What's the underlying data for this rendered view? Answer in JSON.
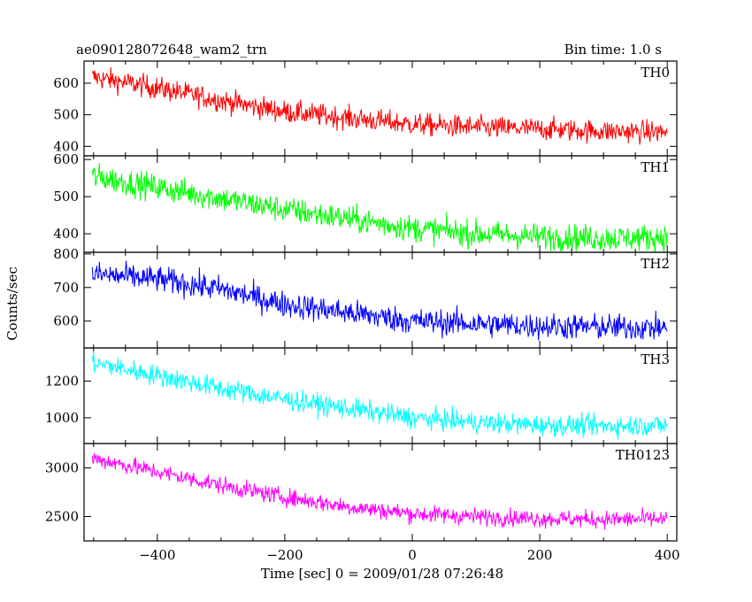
{
  "chart_data": {
    "type": "line",
    "title": "ae090128072648_wam2_trn",
    "bin_time_label": "Bin time: 1.0 s",
    "xlabel": "Time [sec] 0 = 2009/01/28 07:26:48",
    "ylabel": "Counts/sec",
    "xlim": [
      -515,
      415
    ],
    "x_ticks": [
      -400,
      -200,
      0,
      200,
      400
    ],
    "x_tick_labels": [
      "−400",
      "−200",
      "0",
      "200",
      "400"
    ],
    "x_range_data": [
      -502,
      400
    ],
    "series": [
      {
        "name": "TH0",
        "color": "#ff0000",
        "ylim": [
          370,
          670
        ],
        "y_ticks": [
          400,
          500,
          600
        ],
        "trend": [
          [
            -502,
            620
          ],
          [
            -400,
            585
          ],
          [
            -300,
            545
          ],
          [
            -200,
            510
          ],
          [
            -100,
            490
          ],
          [
            0,
            470
          ],
          [
            100,
            460
          ],
          [
            200,
            455
          ],
          [
            300,
            448
          ],
          [
            400,
            445
          ]
        ],
        "noise": 22
      },
      {
        "name": "TH1",
        "color": "#00ff00",
        "ylim": [
          350,
          610
        ],
        "y_ticks": [
          400,
          500,
          600
        ],
        "trend": [
          [
            -502,
            555
          ],
          [
            -400,
            525
          ],
          [
            -300,
            495
          ],
          [
            -200,
            465
          ],
          [
            -100,
            440
          ],
          [
            0,
            415
          ],
          [
            100,
            400
          ],
          [
            200,
            392
          ],
          [
            300,
            388
          ],
          [
            400,
            390
          ]
        ],
        "noise": 22
      },
      {
        "name": "TH2",
        "color": "#0000ff",
        "ylim": [
          520,
          805
        ],
        "y_ticks": [
          600,
          700,
          800
        ],
        "trend": [
          [
            -502,
            740
          ],
          [
            -400,
            725
          ],
          [
            -300,
            695
          ],
          [
            -200,
            650
          ],
          [
            -100,
            625
          ],
          [
            0,
            600
          ],
          [
            100,
            592
          ],
          [
            200,
            585
          ],
          [
            300,
            582
          ],
          [
            400,
            580
          ]
        ],
        "noise": 24
      },
      {
        "name": "TH3",
        "color": "#00ffff",
        "ylim": [
          860,
          1380
        ],
        "y_ticks": [
          1000,
          1200
        ],
        "trend": [
          [
            -502,
            1300
          ],
          [
            -400,
            1230
          ],
          [
            -300,
            1160
          ],
          [
            -200,
            1100
          ],
          [
            -100,
            1050
          ],
          [
            0,
            1000
          ],
          [
            100,
            975
          ],
          [
            200,
            960
          ],
          [
            300,
            955
          ],
          [
            400,
            960
          ]
        ],
        "noise": 35
      },
      {
        "name": "TH0123",
        "color": "#ff00ff",
        "ylim": [
          2250,
          3250
        ],
        "y_ticks": [
          2500,
          3000
        ],
        "trend": [
          [
            -502,
            3100
          ],
          [
            -400,
            2960
          ],
          [
            -300,
            2820
          ],
          [
            -200,
            2700
          ],
          [
            -100,
            2600
          ],
          [
            0,
            2530
          ],
          [
            100,
            2500
          ],
          [
            200,
            2480
          ],
          [
            300,
            2470
          ],
          [
            400,
            2475
          ]
        ],
        "noise": 55
      }
    ],
    "grid": false,
    "legend": "none"
  }
}
